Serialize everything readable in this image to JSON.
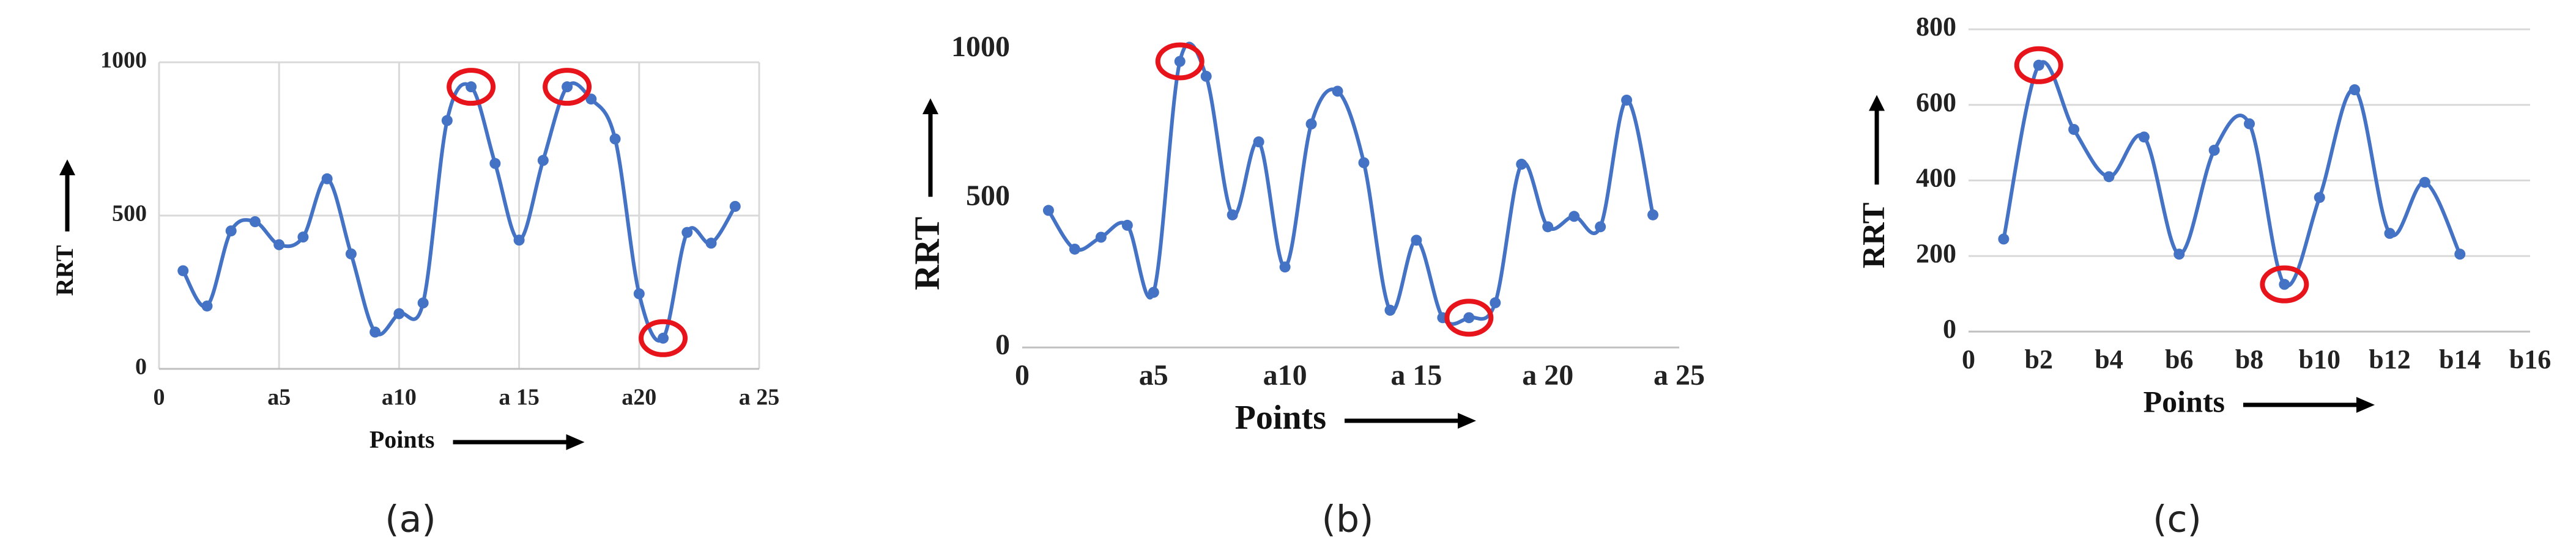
{
  "chart_data": [
    {
      "type": "line",
      "caption": "(a)",
      "x_label": "Points",
      "y_label": "RRT",
      "x": [
        1,
        2,
        3,
        4,
        5,
        6,
        7,
        8,
        9,
        10,
        11,
        12,
        13,
        14,
        15,
        16,
        17,
        18,
        19,
        20,
        21,
        22,
        23,
        24
      ],
      "series": [
        {
          "color": "#4472c4",
          "values": [
            320,
            205,
            450,
            480,
            405,
            430,
            620,
            375,
            120,
            180,
            215,
            810,
            920,
            670,
            420,
            680,
            920,
            880,
            750,
            245,
            100,
            445,
            410,
            530
          ]
        }
      ],
      "xlim": [
        0,
        25
      ],
      "xticks": [
        0,
        {
          "value": 5,
          "label": "a5"
        },
        {
          "value": 10,
          "label": "a10"
        },
        {
          "value": 15,
          "label": "a 15"
        },
        {
          "value": 20,
          "label": "a20"
        },
        {
          "value": 25,
          "label": "a 25"
        }
      ],
      "ylim": [
        0,
        1000
      ],
      "yticks": [
        0,
        500,
        1000
      ],
      "grid": "both",
      "highlight_x": [
        13,
        17,
        21
      ],
      "highlight_color": "#e8141c"
    },
    {
      "type": "line",
      "caption": "(b)",
      "x_label": "Points",
      "y_label": "RRT",
      "x": [
        1,
        2,
        3,
        4,
        5,
        6,
        7,
        8,
        9,
        10,
        11,
        12,
        13,
        14,
        15,
        16,
        17,
        18,
        19,
        20,
        21,
        22,
        23,
        24
      ],
      "series": [
        {
          "color": "#4472c4",
          "values": [
            460,
            330,
            370,
            410,
            185,
            960,
            910,
            445,
            690,
            270,
            750,
            860,
            620,
            125,
            360,
            100,
            100,
            150,
            615,
            405,
            440,
            405,
            830,
            445
          ]
        }
      ],
      "xlim": [
        0,
        25
      ],
      "xticks": [
        0,
        {
          "value": 5,
          "label": "a5"
        },
        {
          "value": 10,
          "label": "a10"
        },
        {
          "value": 15,
          "label": "a 15"
        },
        {
          "value": 20,
          "label": "a 20"
        },
        {
          "value": 25,
          "label": "a 25"
        }
      ],
      "ylim": [
        0,
        1000
      ],
      "yticks": [
        0,
        500,
        1000
      ],
      "grid": "none",
      "highlight_x": [
        6,
        17
      ],
      "highlight_color": "#e8141c"
    },
    {
      "type": "line",
      "caption": "(c)",
      "x_label": "Points",
      "y_label": "RRT",
      "x": [
        1,
        2,
        3,
        4,
        5,
        6,
        7,
        8,
        9,
        10,
        11,
        12,
        13,
        14
      ],
      "series": [
        {
          "color": "#4472c4",
          "values": [
            245,
            705,
            535,
            410,
            515,
            205,
            480,
            550,
            125,
            355,
            640,
            260,
            395,
            205
          ]
        }
      ],
      "xlim": [
        0,
        16
      ],
      "xticks": [
        0,
        {
          "value": 2,
          "label": "b2"
        },
        {
          "value": 4,
          "label": "b4"
        },
        {
          "value": 6,
          "label": "b6"
        },
        {
          "value": 8,
          "label": "b8"
        },
        {
          "value": 10,
          "label": "b10"
        },
        {
          "value": 12,
          "label": "b12"
        },
        {
          "value": 14,
          "label": "b14"
        },
        {
          "value": 16,
          "label": "b16"
        }
      ],
      "ylim": [
        0,
        800
      ],
      "yticks": [
        0,
        200,
        400,
        600,
        800
      ],
      "grid": "y",
      "highlight_x": [
        2,
        9
      ],
      "highlight_color": "#e8141c"
    }
  ]
}
